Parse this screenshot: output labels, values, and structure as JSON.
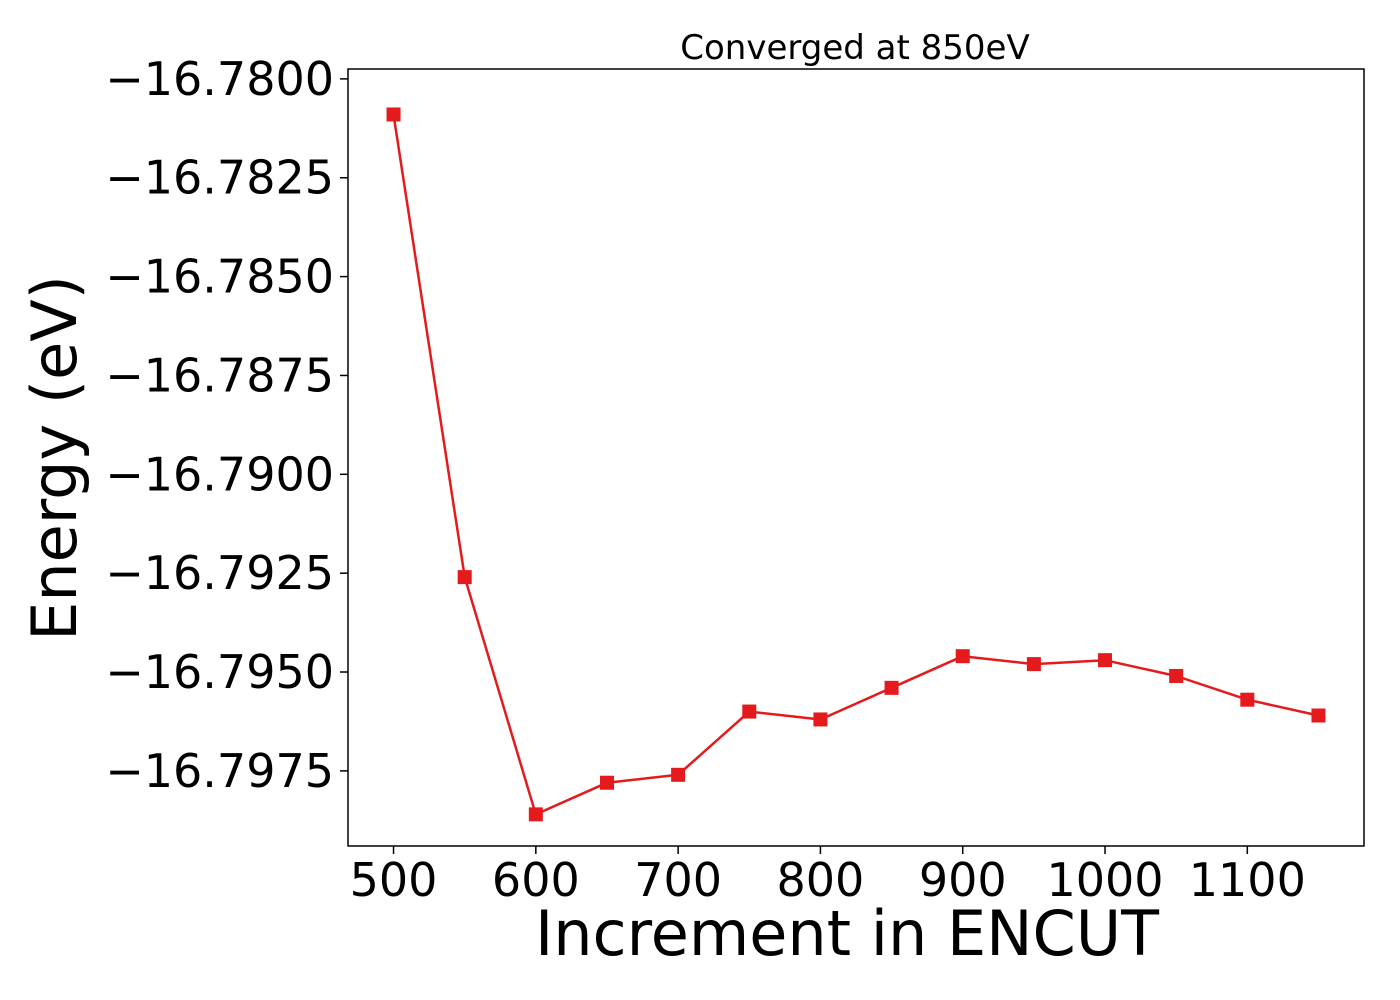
{
  "chart_data": {
    "type": "line",
    "title": "Converged at 850eV",
    "xlabel": "Increment in ENCUT",
    "ylabel": "Energy (eV)",
    "xlim": [
      468,
      1182
    ],
    "ylim": [
      -16.7994,
      -16.77975
    ],
    "x_ticks": [
      500,
      600,
      700,
      800,
      900,
      1000,
      1100
    ],
    "x_tick_labels": [
      "500",
      "600",
      "700",
      "800",
      "900",
      "1000",
      "1100"
    ],
    "y_ticks": [
      -16.78,
      -16.7825,
      -16.785,
      -16.7875,
      -16.79,
      -16.7925,
      -16.795,
      -16.7975
    ],
    "y_tick_labels": [
      "−16.7800",
      "−16.7825",
      "−16.7850",
      "−16.7875",
      "−16.7900",
      "−16.7925",
      "−16.7950",
      "−16.7975"
    ],
    "grid": false,
    "series": [
      {
        "color": "#e41a1c",
        "marker": "square",
        "x": [
          500,
          550,
          600,
          650,
          700,
          750,
          800,
          850,
          900,
          950,
          1000,
          1050,
          1100,
          1150
        ],
        "y": [
          -16.7809,
          -16.7926,
          -16.7986,
          -16.7978,
          -16.7976,
          -16.796,
          -16.7962,
          -16.7954,
          -16.7946,
          -16.7948,
          -16.7947,
          -16.7951,
          -16.7957,
          -16.7961
        ]
      }
    ]
  }
}
